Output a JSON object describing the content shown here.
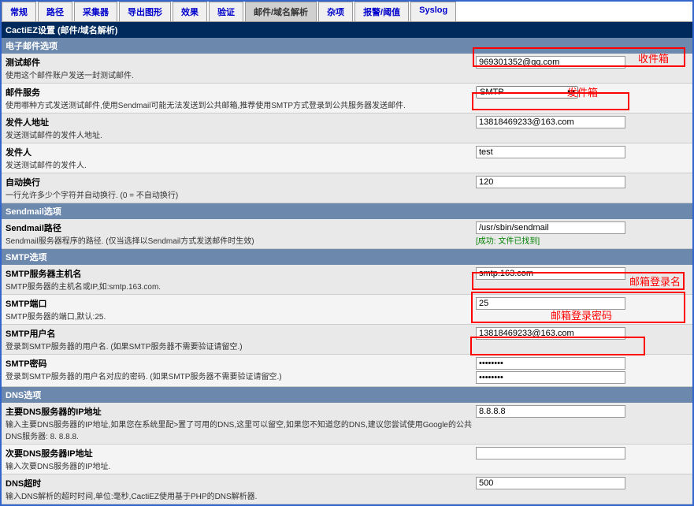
{
  "tabs": {
    "items": [
      "常规",
      "路径",
      "采集器",
      "导出图形",
      "效果",
      "验证",
      "邮件/域名解析",
      "杂项",
      "报警/阈值",
      "Syslog"
    ],
    "active_index": 6
  },
  "section_title": "CactiEZ设置 (邮件/域名解析)",
  "subsections": {
    "email": "电子邮件选项",
    "sendmail": "Sendmail选项",
    "smtp": "SMTP选项",
    "dns": "DNS选项"
  },
  "rows": {
    "test_mail": {
      "title": "测试邮件",
      "desc": "使用这个邮件账户发送一封测试邮件.",
      "value": "969301352@qq.com"
    },
    "mail_service": {
      "title": "邮件服务",
      "desc": "使用哪种方式发送测试邮件,使用Sendmail可能无法发送到公共邮箱,推荐使用SMTP方式登录到公共服务器发送邮件.",
      "value": "SMTP"
    },
    "sender_addr": {
      "title": "发件人地址",
      "desc": "发送测试邮件的发件人地址.",
      "value": "13818469233@163.com"
    },
    "sender_name": {
      "title": "发件人",
      "desc": "发送测试邮件的发件人.",
      "value": "test"
    },
    "auto_wrap": {
      "title": "自动换行",
      "desc": "一行允许多少个字符并自动换行. (0 = 不自动换行)",
      "value": "120"
    },
    "sendmail_path": {
      "title": "Sendmail路径",
      "desc": "Sendmail服务器程序的路径. (仅当选择以Sendmail方式发送邮件时生效)",
      "value": "/usr/sbin/sendmail",
      "success": "[成功: 文件已找到]"
    },
    "smtp_host": {
      "title": "SMTP服务器主机名",
      "desc": "SMTP服务器的主机名或IP,如:smtp.163.com.",
      "value": "smtp.163.com"
    },
    "smtp_port": {
      "title": "SMTP端口",
      "desc": "SMTP服务器的端口,默认:25.",
      "value": "25"
    },
    "smtp_user": {
      "title": "SMTP用户名",
      "desc": "登录到SMTP服务器的用户名. (如果SMTP服务器不需要验证请留空.)",
      "value": "13818469233@163.com"
    },
    "smtp_pass": {
      "title": "SMTP密码",
      "desc": "登录到SMTP服务器的用户名对应的密码. (如果SMTP服务器不需要验证请留空.)",
      "value": "••••••••"
    },
    "dns_primary": {
      "title": "主要DNS服务器的IP地址",
      "desc": "输入主要DNS服务器的IP地址,如果您在系统里配>置了可用的DNS,这里可以留空,如果您不知道您的DNS,建议您尝试使用Google的公共DNS服务器: 8. 8.8.8.",
      "value": "8.8.8.8"
    },
    "dns_secondary": {
      "title": "次要DNS服务器IP地址",
      "desc": "输入次要DNS服务器的IP地址.",
      "value": ""
    },
    "dns_timeout": {
      "title": "DNS超时",
      "desc": "输入DNS解析的超时时间,单位:毫秒,CactiEZ使用基于PHP的DNS解析器.",
      "value": "500"
    }
  },
  "annotations": {
    "inbox": "收件箱",
    "outbox": "发件箱",
    "login_name": "邮箱登录名",
    "login_pass": "邮箱登录密码"
  },
  "watermark": {
    "main": " ",
    "sub": " "
  }
}
